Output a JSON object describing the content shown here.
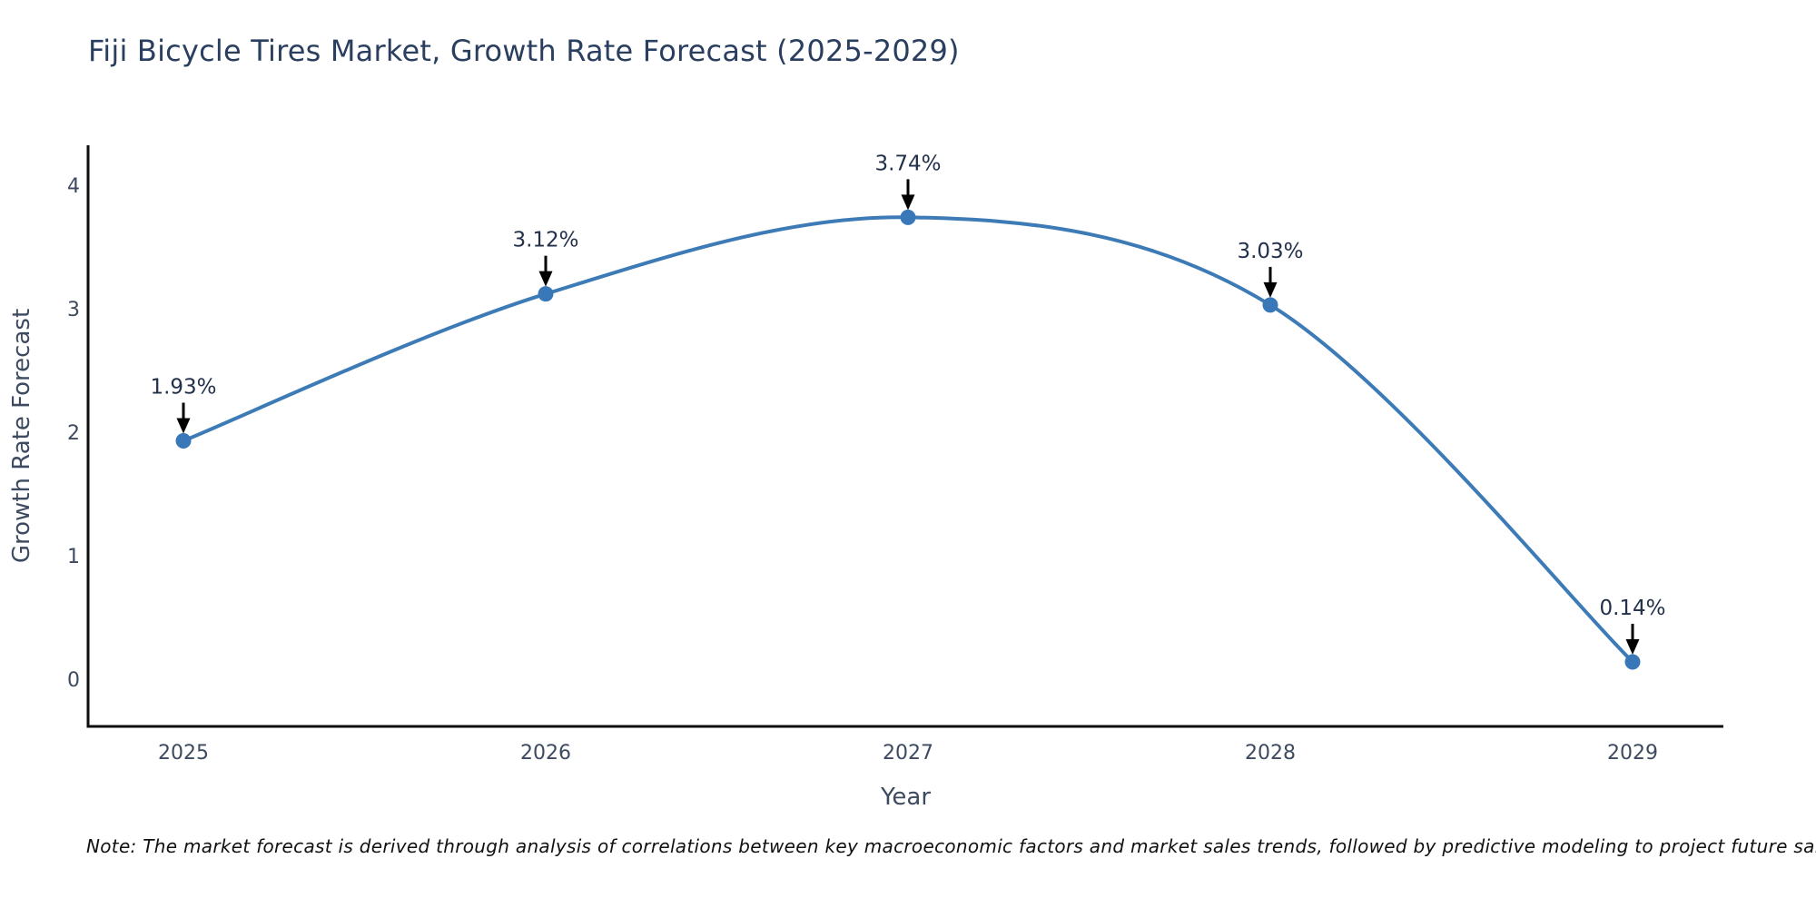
{
  "chart_data": {
    "type": "line",
    "title": "Fiji Bicycle Tires Market, Growth Rate Forecast (2025-2029)",
    "xlabel": "Year",
    "ylabel": "Growth Rate Forecast",
    "x": [
      2025,
      2026,
      2027,
      2028,
      2029
    ],
    "y": [
      1.93,
      3.12,
      3.74,
      3.03,
      0.14
    ],
    "point_labels": [
      "1.93%",
      "3.12%",
      "3.74%",
      "3.03%",
      "0.14%"
    ],
    "x_tick_labels": [
      "2025",
      "2026",
      "2027",
      "2028",
      "2029"
    ],
    "y_tick_values": [
      0,
      1,
      2,
      3,
      4
    ],
    "y_tick_labels": [
      "0",
      "1",
      "2",
      "3",
      "4"
    ],
    "ylim": [
      -0.38,
      4.32
    ],
    "line_shape": "spline",
    "grid": false,
    "legend": null,
    "annotation_style": "value label with downward black arrow pointing at marker",
    "colors": {
      "line": "#3d7bb7",
      "marker": "#3878b8",
      "arrow": "#000000",
      "axis_line": "#0d0d0d",
      "title_text": "#2a3f5f",
      "axis_title_text": "#3d4a5f",
      "tick_text": "#3d4a5f",
      "annotation_text": "#22304a",
      "note_text": "#111111"
    }
  },
  "footnote": "Note: The market forecast is derived through analysis of correlations between key macroeconomic factors and market sales trends, followed by predictive modeling to project future sales."
}
